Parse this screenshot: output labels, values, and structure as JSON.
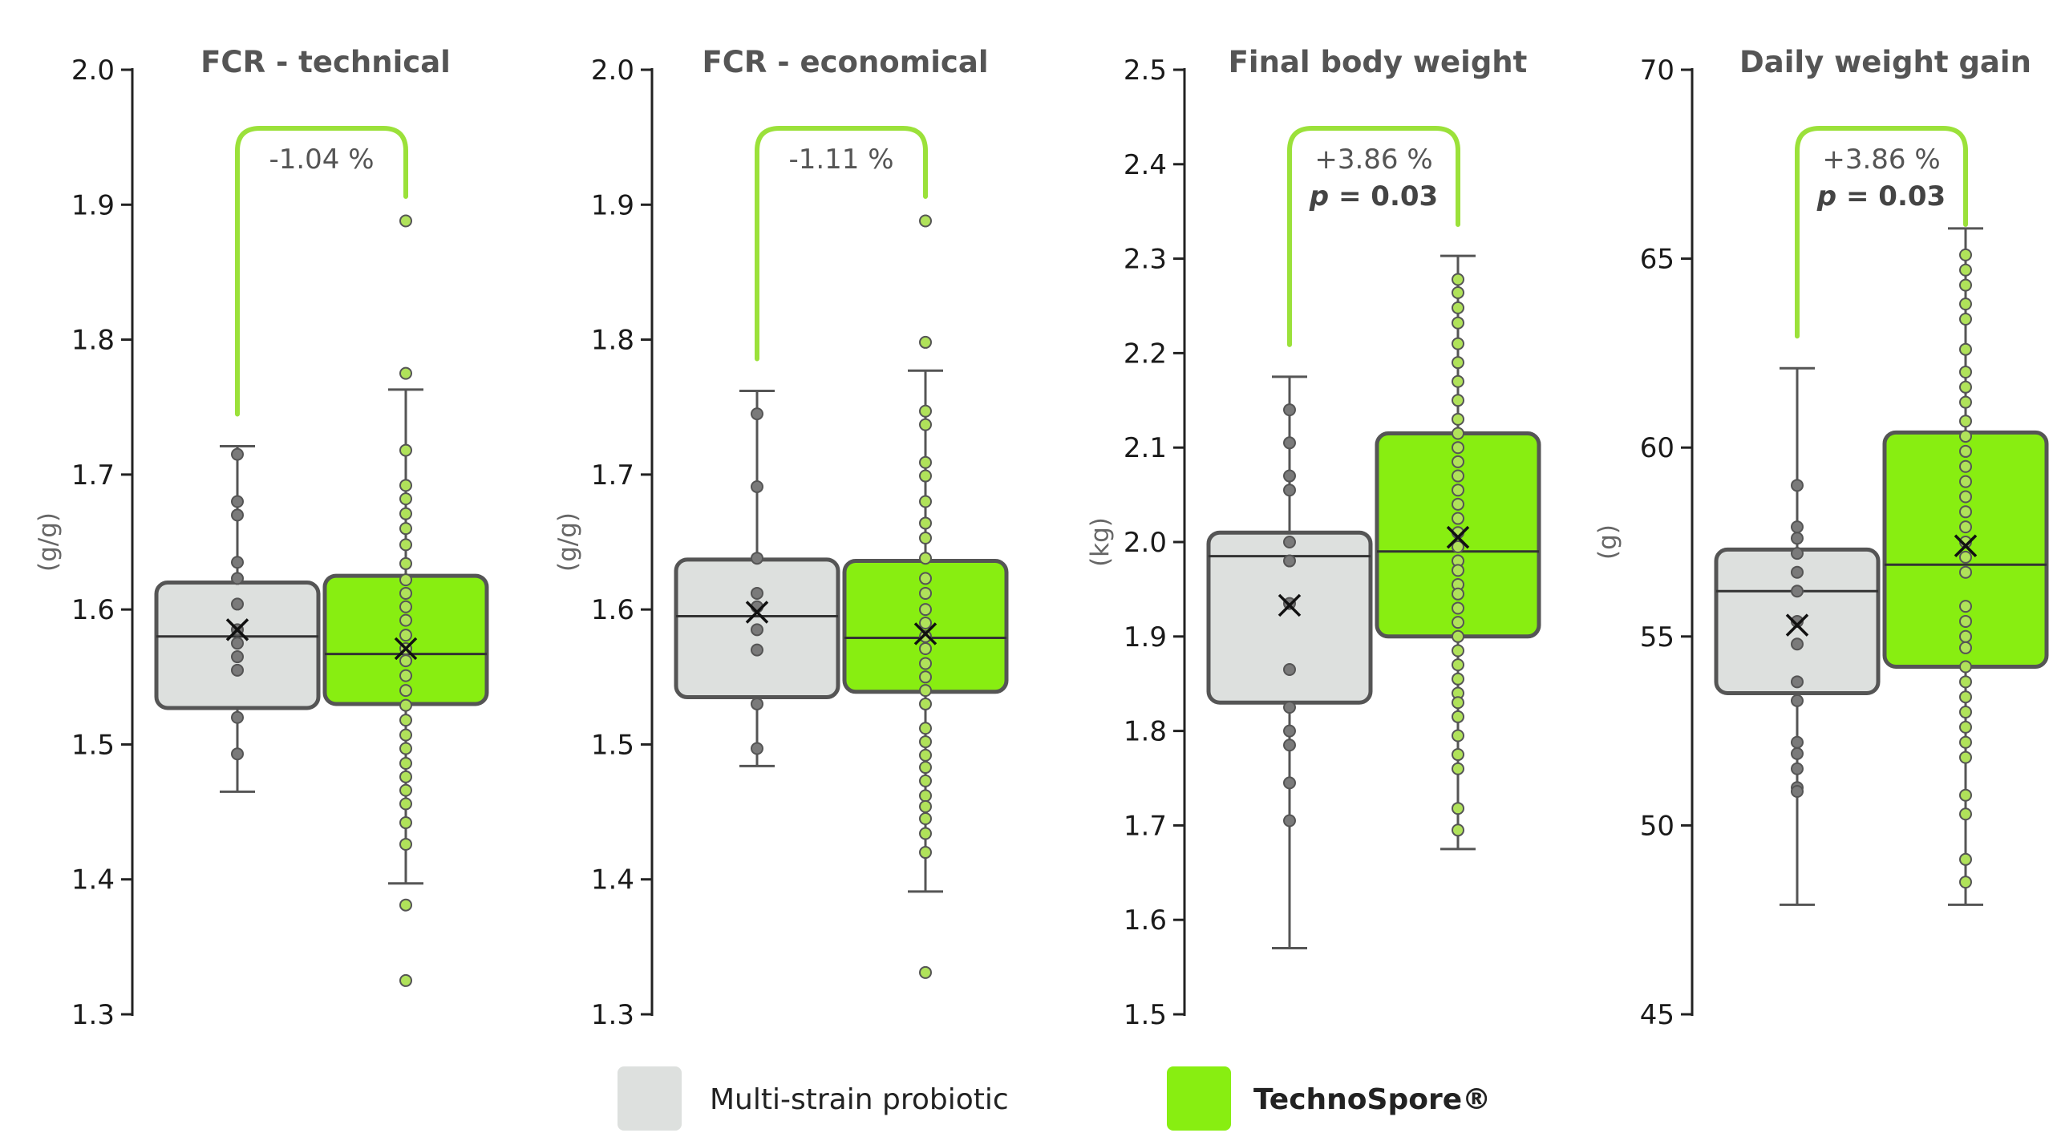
{
  "colors": {
    "control_fill": "#dde0de",
    "treatment_fill": "#88ee11",
    "box_stroke": "#555555",
    "control_point": "#7a7a7a",
    "treatment_point": "#b0e25a",
    "bracket": "#9be13a",
    "axis": "#222222"
  },
  "legend": {
    "items": [
      {
        "label": "Multi-strain probiotic",
        "color": "#dde0de",
        "bold": false
      },
      {
        "label": "TechnoSpore®",
        "color": "#88ee11",
        "bold": true
      }
    ]
  },
  "chart_data": [
    {
      "type": "box",
      "title": "FCR - technical",
      "ylabel": "(g/g)",
      "ylim": [
        1.3,
        2.0
      ],
      "yticks": [
        "1.3",
        "1.4",
        "1.5",
        "1.6",
        "1.7",
        "1.8",
        "1.9",
        "2.0"
      ],
      "annotation": {
        "text": "-1.04 %",
        "p_label": "",
        "p_value": ""
      },
      "series": [
        {
          "name": "Multi-strain probiotic",
          "q1": 1.527,
          "median": 1.58,
          "q3": 1.62,
          "mean": 1.585,
          "whisker_low": 1.465,
          "whisker_high": 1.721,
          "points": [
            1.715,
            1.68,
            1.67,
            1.635,
            1.623,
            1.604,
            1.585,
            1.575,
            1.565,
            1.555,
            1.52,
            1.493
          ]
        },
        {
          "name": "TechnoSpore®",
          "q1": 1.53,
          "median": 1.567,
          "q3": 1.625,
          "mean": 1.571,
          "whisker_low": 1.397,
          "whisker_high": 1.763,
          "points": [
            1.888,
            1.775,
            1.718,
            1.692,
            1.682,
            1.671,
            1.66,
            1.648,
            1.634,
            1.622,
            1.612,
            1.602,
            1.592,
            1.581,
            1.571,
            1.562,
            1.551,
            1.54,
            1.529,
            1.518,
            1.507,
            1.497,
            1.486,
            1.476,
            1.466,
            1.456,
            1.442,
            1.426,
            1.381,
            1.325
          ]
        }
      ]
    },
    {
      "type": "box",
      "title": "FCR - economical",
      "ylabel": "(g/g)",
      "ylim": [
        1.3,
        2.0
      ],
      "yticks": [
        "1.3",
        "1.4",
        "1.5",
        "1.6",
        "1.7",
        "1.8",
        "1.9",
        "2.0"
      ],
      "annotation": {
        "text": "-1.11 %",
        "p_label": "",
        "p_value": ""
      },
      "series": [
        {
          "name": "Multi-strain probiotic",
          "q1": 1.535,
          "median": 1.595,
          "q3": 1.637,
          "mean": 1.598,
          "whisker_low": 1.484,
          "whisker_high": 1.762,
          "points": [
            1.745,
            1.691,
            1.638,
            1.612,
            1.602,
            1.585,
            1.57,
            1.53,
            1.497
          ]
        },
        {
          "name": "TechnoSpore®",
          "q1": 1.539,
          "median": 1.579,
          "q3": 1.636,
          "mean": 1.582,
          "whisker_low": 1.391,
          "whisker_high": 1.777,
          "points": [
            1.888,
            1.798,
            1.747,
            1.737,
            1.709,
            1.699,
            1.68,
            1.664,
            1.653,
            1.638,
            1.623,
            1.612,
            1.6,
            1.59,
            1.58,
            1.571,
            1.56,
            1.55,
            1.54,
            1.53,
            1.512,
            1.502,
            1.492,
            1.483,
            1.473,
            1.462,
            1.454,
            1.445,
            1.434,
            1.42,
            1.331
          ]
        }
      ]
    },
    {
      "type": "box",
      "title": "Final body weight",
      "ylabel": "(kg)",
      "ylim": [
        1.5,
        2.5
      ],
      "yticks": [
        "1.5",
        "1.6",
        "1.7",
        "1.8",
        "1.9",
        "2.0",
        "2.1",
        "2.2",
        "2.3",
        "2.4",
        "2.5"
      ],
      "annotation": {
        "text": "+3.86 %",
        "p_label": "p",
        "p_value": " = 0.03"
      },
      "series": [
        {
          "name": "Multi-strain probiotic",
          "q1": 1.83,
          "median": 1.985,
          "q3": 2.01,
          "mean": 1.933,
          "whisker_low": 1.57,
          "whisker_high": 2.175,
          "points": [
            2.14,
            2.105,
            2.07,
            2.055,
            2.0,
            1.98,
            1.935,
            1.865,
            1.825,
            1.8,
            1.785,
            1.745,
            1.705
          ]
        },
        {
          "name": "TechnoSpore®",
          "q1": 1.9,
          "median": 1.99,
          "q3": 2.115,
          "mean": 2.005,
          "whisker_low": 1.675,
          "whisker_high": 2.303,
          "points": [
            2.278,
            2.264,
            2.248,
            2.232,
            2.21,
            2.19,
            2.17,
            2.15,
            2.13,
            2.115,
            2.1,
            2.085,
            2.07,
            2.055,
            2.04,
            2.025,
            2.01,
            1.995,
            1.98,
            1.97,
            1.955,
            1.945,
            1.93,
            1.915,
            1.9,
            1.885,
            1.87,
            1.855,
            1.84,
            1.83,
            1.815,
            1.795,
            1.775,
            1.76,
            1.718,
            1.695
          ]
        }
      ]
    },
    {
      "type": "box",
      "title": "Daily weight gain",
      "ylabel": "(g)",
      "ylim": [
        45,
        70
      ],
      "yticks": [
        "45",
        "50",
        "55",
        "60",
        "65",
        "70"
      ],
      "annotation": {
        "text": "+3.86 %",
        "p_label": "p",
        "p_value": " = 0.03"
      },
      "series": [
        {
          "name": "Multi-strain probiotic",
          "q1": 53.5,
          "median": 56.2,
          "q3": 57.3,
          "mean": 55.3,
          "whisker_low": 47.9,
          "whisker_high": 62.1,
          "points": [
            59.0,
            57.9,
            57.6,
            57.2,
            56.7,
            56.2,
            55.4,
            54.8,
            53.8,
            53.3,
            52.2,
            51.9,
            51.5,
            51.0,
            50.9
          ]
        },
        {
          "name": "TechnoSpore®",
          "q1": 54.2,
          "median": 56.9,
          "q3": 60.4,
          "mean": 57.4,
          "whisker_low": 47.9,
          "whisker_high": 65.8,
          "points": [
            65.1,
            64.7,
            64.3,
            63.8,
            63.4,
            62.6,
            62.0,
            61.6,
            61.2,
            60.7,
            60.3,
            59.9,
            59.5,
            59.1,
            58.7,
            58.3,
            57.9,
            57.5,
            57.1,
            56.7,
            55.8,
            55.4,
            55.0,
            54.7,
            54.2,
            53.8,
            53.4,
            53.0,
            52.6,
            52.2,
            51.8,
            50.8,
            50.3,
            49.1,
            48.5
          ]
        }
      ]
    }
  ]
}
